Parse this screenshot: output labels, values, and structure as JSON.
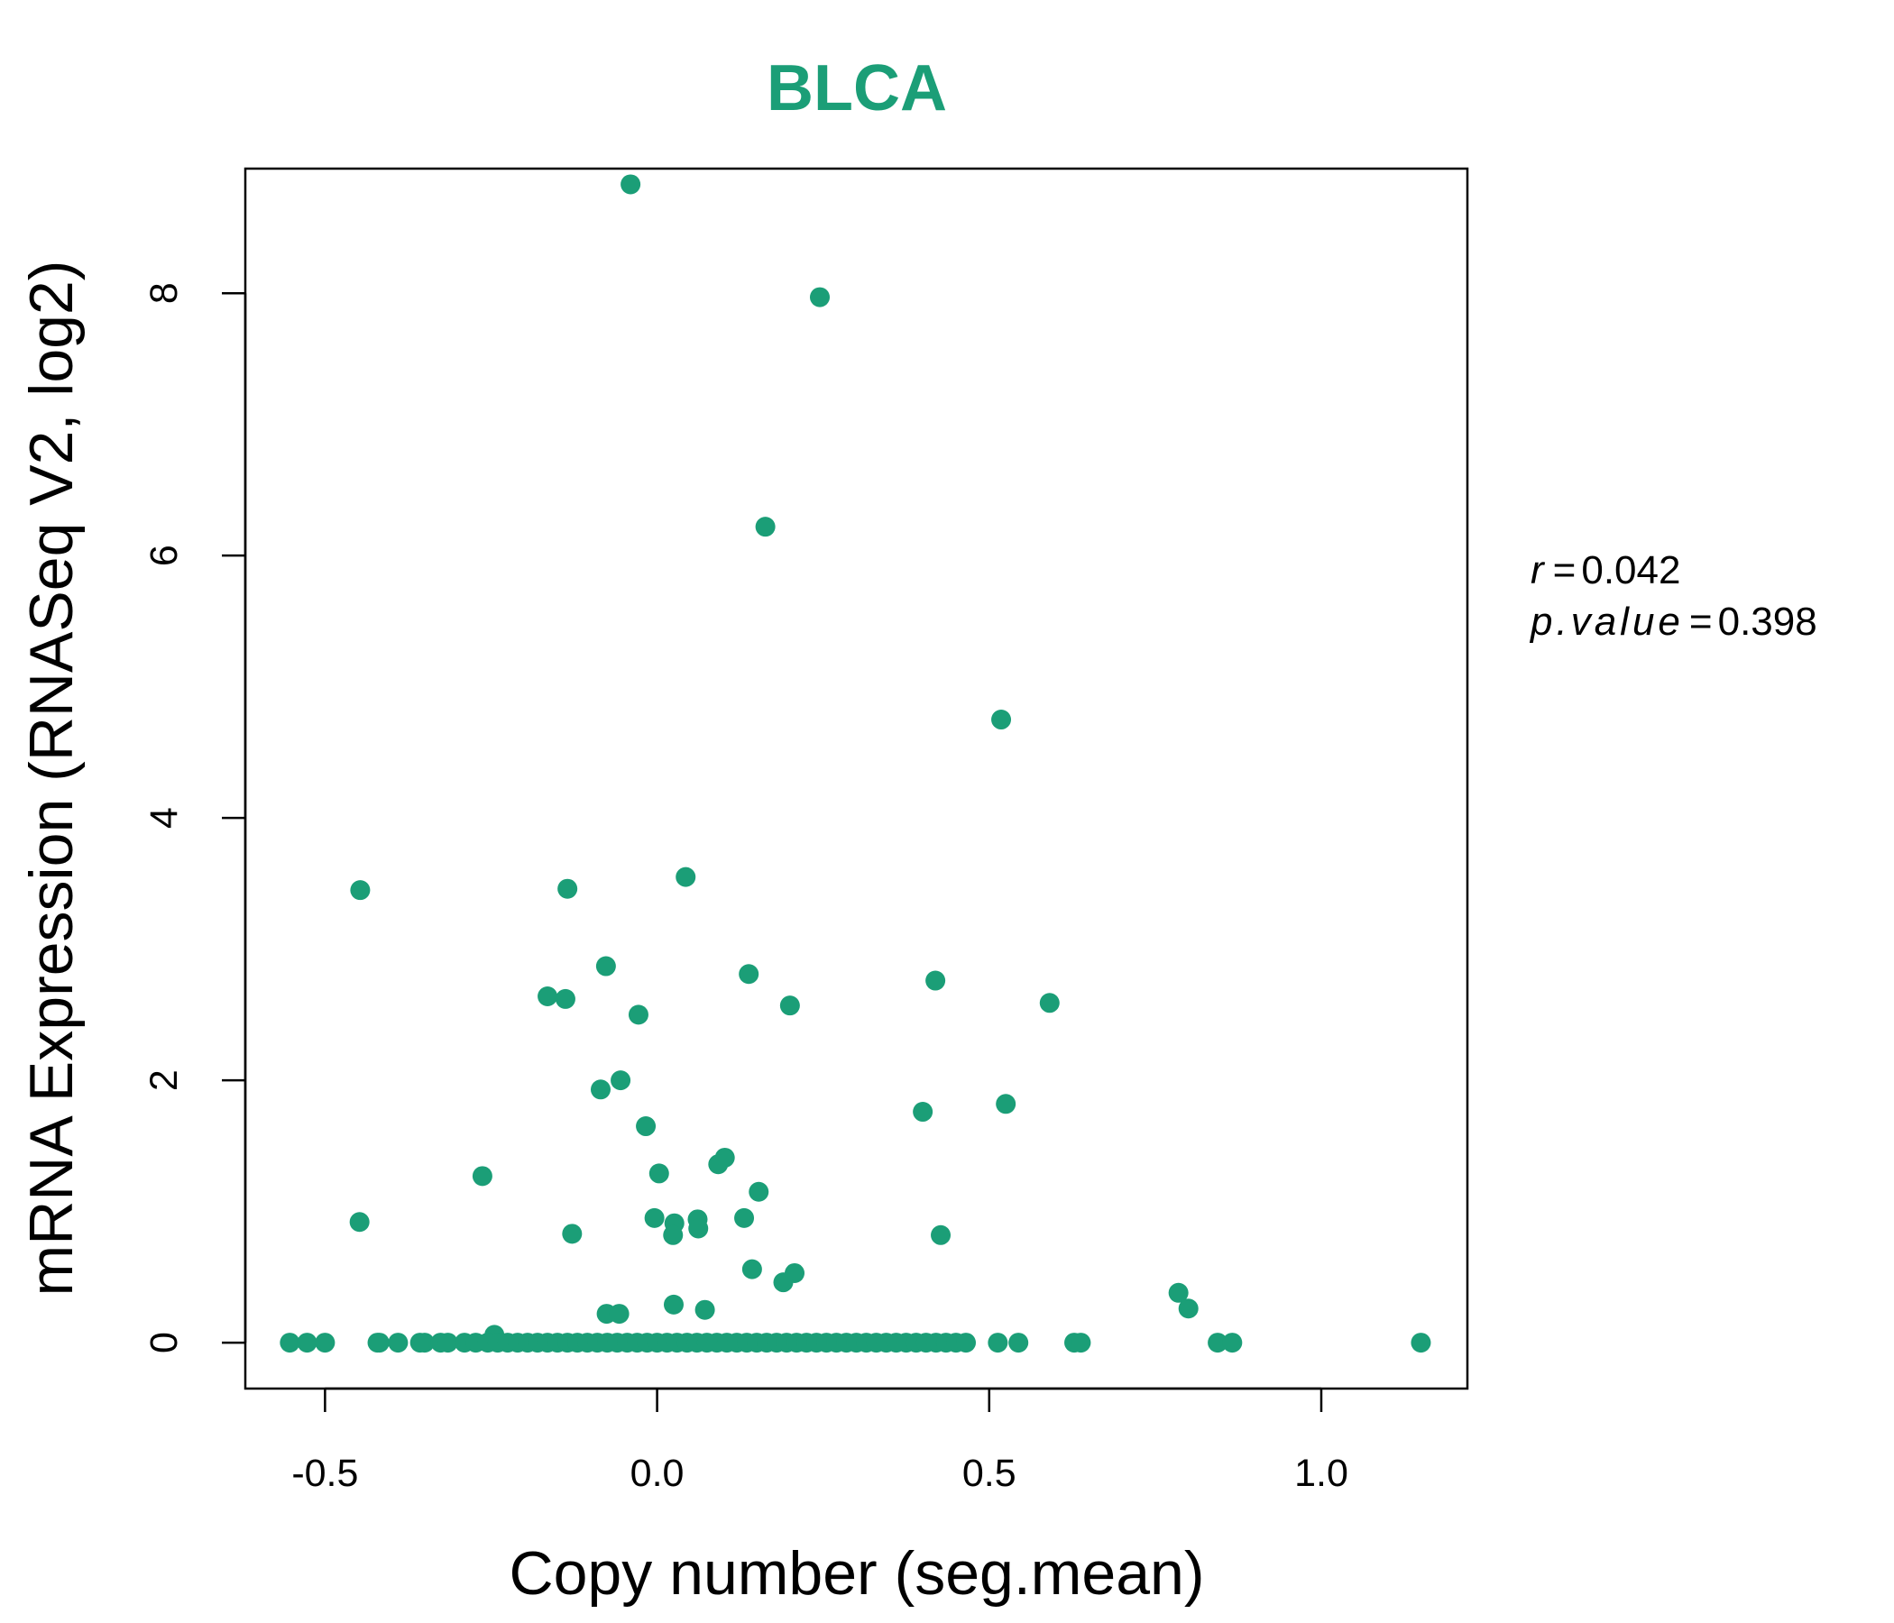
{
  "chart_data": {
    "type": "scatter",
    "title": "BLCA",
    "xlabel": "Copy number (seg.mean)",
    "ylabel": "mRNA Expression (RNASeq V2, log2)",
    "xlim": [
      -0.62,
      1.22
    ],
    "ylim": [
      -0.35,
      8.95
    ],
    "x_ticks": [
      -0.5,
      0.0,
      0.5,
      1.0
    ],
    "x_tick_labels": [
      "-0.5",
      "0.0",
      "0.5",
      "1.0"
    ],
    "y_ticks": [
      0,
      2,
      4,
      6,
      8
    ],
    "y_tick_labels": [
      "0",
      "2",
      "4",
      "6",
      "8"
    ],
    "grid": false,
    "legend": "none",
    "color": "#1B9E77",
    "annotation": {
      "r_label": "r",
      "r_value": "0.042",
      "p_label": "p.value",
      "p_value": "0.398"
    },
    "points": [
      {
        "x": -0.04,
        "y": 8.83
      },
      {
        "x": 0.245,
        "y": 7.97
      },
      {
        "x": 0.163,
        "y": 6.22
      },
      {
        "x": 0.518,
        "y": 4.75
      },
      {
        "x": 0.043,
        "y": 3.55
      },
      {
        "x": -0.447,
        "y": 3.45
      },
      {
        "x": -0.135,
        "y": 3.46
      },
      {
        "x": -0.077,
        "y": 2.87
      },
      {
        "x": 0.138,
        "y": 2.81
      },
      {
        "x": 0.419,
        "y": 2.76
      },
      {
        "x": -0.165,
        "y": 2.64
      },
      {
        "x": -0.138,
        "y": 2.62
      },
      {
        "x": 0.591,
        "y": 2.59
      },
      {
        "x": 0.2,
        "y": 2.57
      },
      {
        "x": -0.028,
        "y": 2.5
      },
      {
        "x": -0.055,
        "y": 2.0
      },
      {
        "x": -0.085,
        "y": 1.93
      },
      {
        "x": 0.525,
        "y": 1.82
      },
      {
        "x": 0.4,
        "y": 1.76
      },
      {
        "x": -0.017,
        "y": 1.65
      },
      {
        "x": 0.102,
        "y": 1.41
      },
      {
        "x": 0.092,
        "y": 1.36
      },
      {
        "x": 0.003,
        "y": 1.29
      },
      {
        "x": -0.263,
        "y": 1.27
      },
      {
        "x": 0.153,
        "y": 1.15
      },
      {
        "x": 0.131,
        "y": 0.95
      },
      {
        "x": -0.004,
        "y": 0.95
      },
      {
        "x": 0.061,
        "y": 0.94
      },
      {
        "x": 0.026,
        "y": 0.91
      },
      {
        "x": -0.448,
        "y": 0.92
      },
      {
        "x": 0.062,
        "y": 0.87
      },
      {
        "x": -0.128,
        "y": 0.83
      },
      {
        "x": 0.024,
        "y": 0.82
      },
      {
        "x": 0.427,
        "y": 0.82
      },
      {
        "x": 0.143,
        "y": 0.56
      },
      {
        "x": 0.207,
        "y": 0.53
      },
      {
        "x": 0.19,
        "y": 0.46
      },
      {
        "x": 0.785,
        "y": 0.38
      },
      {
        "x": 0.025,
        "y": 0.29
      },
      {
        "x": 0.8,
        "y": 0.26
      },
      {
        "x": 0.072,
        "y": 0.25
      },
      {
        "x": -0.076,
        "y": 0.22
      },
      {
        "x": -0.057,
        "y": 0.22
      },
      {
        "x": -0.245,
        "y": 0.06
      },
      {
        "x": -0.553,
        "y": 0
      },
      {
        "x": -0.527,
        "y": 0
      },
      {
        "x": -0.5,
        "y": 0
      },
      {
        "x": -0.421,
        "y": 0
      },
      {
        "x": -0.418,
        "y": 0
      },
      {
        "x": -0.39,
        "y": 0
      },
      {
        "x": -0.357,
        "y": 0
      },
      {
        "x": -0.35,
        "y": 0
      },
      {
        "x": -0.326,
        "y": 0
      },
      {
        "x": -0.315,
        "y": 0
      },
      {
        "x": -0.29,
        "y": 0
      },
      {
        "x": -0.273,
        "y": 0
      },
      {
        "x": -0.255,
        "y": 0
      },
      {
        "x": -0.24,
        "y": 0
      },
      {
        "x": -0.225,
        "y": 0
      },
      {
        "x": -0.21,
        "y": 0
      },
      {
        "x": -0.195,
        "y": 0
      },
      {
        "x": -0.18,
        "y": 0
      },
      {
        "x": -0.165,
        "y": 0
      },
      {
        "x": -0.15,
        "y": 0
      },
      {
        "x": -0.135,
        "y": 0
      },
      {
        "x": -0.12,
        "y": 0
      },
      {
        "x": -0.105,
        "y": 0
      },
      {
        "x": -0.09,
        "y": 0
      },
      {
        "x": -0.075,
        "y": 0
      },
      {
        "x": -0.06,
        "y": 0
      },
      {
        "x": -0.045,
        "y": 0
      },
      {
        "x": -0.03,
        "y": 0
      },
      {
        "x": -0.015,
        "y": 0
      },
      {
        "x": 0.0,
        "y": 0
      },
      {
        "x": 0.015,
        "y": 0
      },
      {
        "x": 0.03,
        "y": 0
      },
      {
        "x": 0.045,
        "y": 0
      },
      {
        "x": 0.06,
        "y": 0
      },
      {
        "x": 0.075,
        "y": 0
      },
      {
        "x": 0.09,
        "y": 0
      },
      {
        "x": 0.105,
        "y": 0
      },
      {
        "x": 0.12,
        "y": 0
      },
      {
        "x": 0.135,
        "y": 0
      },
      {
        "x": 0.15,
        "y": 0
      },
      {
        "x": 0.165,
        "y": 0
      },
      {
        "x": 0.18,
        "y": 0
      },
      {
        "x": 0.195,
        "y": 0
      },
      {
        "x": 0.21,
        "y": 0
      },
      {
        "x": 0.225,
        "y": 0
      },
      {
        "x": 0.24,
        "y": 0
      },
      {
        "x": 0.255,
        "y": 0
      },
      {
        "x": 0.27,
        "y": 0
      },
      {
        "x": 0.285,
        "y": 0
      },
      {
        "x": 0.3,
        "y": 0
      },
      {
        "x": 0.315,
        "y": 0
      },
      {
        "x": 0.33,
        "y": 0
      },
      {
        "x": 0.345,
        "y": 0
      },
      {
        "x": 0.36,
        "y": 0
      },
      {
        "x": 0.375,
        "y": 0
      },
      {
        "x": 0.39,
        "y": 0
      },
      {
        "x": 0.405,
        "y": 0
      },
      {
        "x": 0.42,
        "y": 0
      },
      {
        "x": 0.435,
        "y": 0
      },
      {
        "x": 0.45,
        "y": 0
      },
      {
        "x": 0.465,
        "y": 0
      },
      {
        "x": 0.513,
        "y": 0
      },
      {
        "x": 0.544,
        "y": 0
      },
      {
        "x": 0.628,
        "y": 0
      },
      {
        "x": 0.638,
        "y": 0
      },
      {
        "x": 0.844,
        "y": 0
      },
      {
        "x": 0.866,
        "y": 0
      },
      {
        "x": 1.15,
        "y": 0
      }
    ]
  }
}
